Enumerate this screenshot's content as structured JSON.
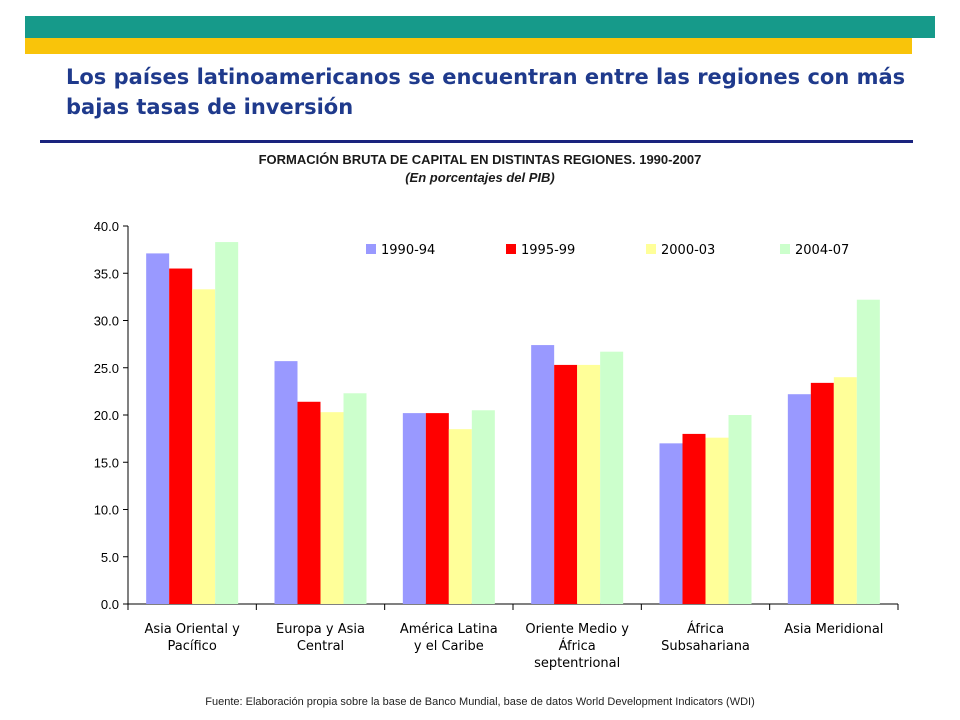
{
  "slide": {
    "title": "Los países latinoamericanos se encuentran entre las regiones con más bajas tasas de inversión",
    "source": "Fuente: Elaboración propia sobre la base de Banco Mundial, base de datos World Development Indicators (WDI)"
  },
  "colors": {
    "band_top": "#169a8a",
    "band_bottom": "#f9c40a",
    "title": "#1f3a8c",
    "rule": "#1a237e"
  },
  "chart_data": {
    "type": "bar",
    "title": "FORMACIÓN BRUTA DE CAPITAL EN DISTINTAS REGIONES. 1990-2007",
    "subtitle": "(En porcentajes del PIB)",
    "xlabel": "",
    "ylabel": "",
    "ylim": [
      0,
      40
    ],
    "yticks": [
      "0.0",
      "5.0",
      "10.0",
      "15.0",
      "20.0",
      "25.0",
      "30.0",
      "35.0",
      "40.0"
    ],
    "grid": false,
    "legend_position": "top",
    "categories": [
      [
        "Asia Oriental y",
        "Pacífico"
      ],
      [
        "Europa y Asia",
        "Central"
      ],
      [
        "América Latina",
        "y el Caribe"
      ],
      [
        "Oriente Medio y",
        "África",
        "septentrional"
      ],
      [
        "África",
        "Subsahariana"
      ],
      [
        "Asia Meridional"
      ]
    ],
    "series": [
      {
        "name": "1990-94",
        "color": "#9999ff",
        "values": [
          37.1,
          25.7,
          20.2,
          27.4,
          17.0,
          22.2
        ]
      },
      {
        "name": "1995-99",
        "color": "#ff0000",
        "values": [
          35.5,
          21.4,
          20.2,
          25.3,
          18.0,
          23.4
        ]
      },
      {
        "name": "2000-03",
        "color": "#ffff99",
        "values": [
          33.3,
          20.3,
          18.5,
          25.3,
          17.6,
          24.0
        ]
      },
      {
        "name": "2004-07",
        "color": "#ccffcc",
        "values": [
          38.3,
          22.3,
          20.5,
          26.7,
          20.0,
          32.2
        ]
      }
    ]
  }
}
